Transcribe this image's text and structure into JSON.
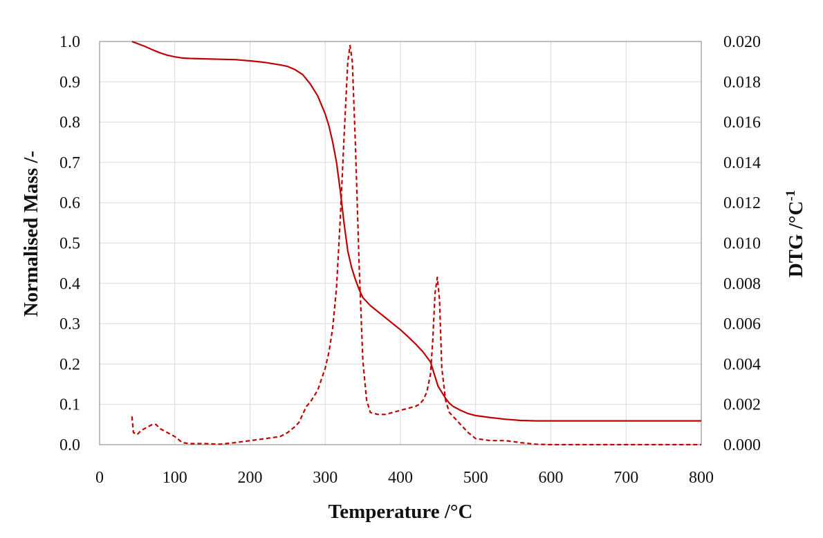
{
  "chart_data": {
    "type": "line",
    "title": "",
    "xlabel": "Temperature /°C",
    "ylabel": "Normalised Mass /-",
    "y2label": "DTG /°C",
    "y2label_superscript": "-1",
    "xlim": [
      0,
      800
    ],
    "ylim": [
      0,
      1.0
    ],
    "y2lim": [
      0,
      0.02
    ],
    "x_ticks": [
      "0",
      "100",
      "200",
      "300",
      "400",
      "500",
      "600",
      "700",
      "800"
    ],
    "y_ticks": [
      "0.0",
      "0.1",
      "0.2",
      "0.3",
      "0.4",
      "0.5",
      "0.6",
      "0.7",
      "0.8",
      "0.9",
      "1.0"
    ],
    "y2_ticks": [
      "0.000",
      "0.002",
      "0.004",
      "0.006",
      "0.008",
      "0.010",
      "0.012",
      "0.014",
      "0.016",
      "0.018",
      "0.020"
    ],
    "grid": true,
    "legend": "none",
    "color": "#c00000",
    "series": [
      {
        "axis": "left",
        "style": "solid",
        "x": [
          43,
          50,
          60,
          70,
          80,
          90,
          100,
          110,
          120,
          140,
          160,
          180,
          200,
          220,
          240,
          250,
          260,
          270,
          280,
          290,
          300,
          305,
          310,
          315,
          320,
          325,
          330,
          335,
          340,
          345,
          350,
          360,
          370,
          380,
          390,
          400,
          410,
          420,
          430,
          440,
          445,
          450,
          455,
          460,
          465,
          470,
          480,
          490,
          500,
          520,
          540,
          560,
          580,
          600,
          650,
          700,
          750,
          800
        ],
        "y": [
          1.0,
          0.995,
          0.988,
          0.98,
          0.972,
          0.966,
          0.962,
          0.959,
          0.958,
          0.957,
          0.956,
          0.955,
          0.952,
          0.948,
          0.942,
          0.938,
          0.93,
          0.918,
          0.895,
          0.865,
          0.82,
          0.79,
          0.75,
          0.7,
          0.63,
          0.55,
          0.48,
          0.44,
          0.41,
          0.385,
          0.365,
          0.345,
          0.33,
          0.315,
          0.3,
          0.285,
          0.268,
          0.25,
          0.23,
          0.205,
          0.175,
          0.145,
          0.13,
          0.115,
          0.103,
          0.095,
          0.085,
          0.077,
          0.072,
          0.067,
          0.063,
          0.06,
          0.059,
          0.059,
          0.059,
          0.059,
          0.059,
          0.059
        ]
      },
      {
        "axis": "right",
        "style": "dashed",
        "x": [
          43,
          45,
          50,
          55,
          60,
          65,
          70,
          75,
          80,
          90,
          100,
          110,
          120,
          140,
          160,
          180,
          200,
          220,
          240,
          250,
          260,
          265,
          270,
          275,
          280,
          290,
          300,
          305,
          310,
          315,
          320,
          325,
          330,
          333,
          336,
          340,
          345,
          350,
          355,
          360,
          370,
          380,
          390,
          400,
          410,
          420,
          425,
          430,
          435,
          440,
          443,
          446,
          449,
          452,
          455,
          460,
          465,
          470,
          480,
          490,
          500,
          520,
          540,
          560,
          580,
          600,
          650,
          700,
          750,
          800
        ],
        "y": [
          0.0014,
          0.0006,
          0.0005,
          0.0007,
          0.0008,
          0.0009,
          0.001,
          0.001,
          0.0008,
          0.0006,
          0.0004,
          0.0001,
          5e-05,
          5e-05,
          2e-05,
          0.0001,
          0.0002,
          0.0003,
          0.0004,
          0.0006,
          0.0009,
          0.0011,
          0.0015,
          0.0019,
          0.0021,
          0.0027,
          0.0038,
          0.0046,
          0.0058,
          0.0078,
          0.0112,
          0.0152,
          0.019,
          0.0198,
          0.019,
          0.015,
          0.009,
          0.0042,
          0.0022,
          0.0016,
          0.0015,
          0.0015,
          0.0016,
          0.0017,
          0.0018,
          0.0019,
          0.002,
          0.0022,
          0.0026,
          0.0035,
          0.0052,
          0.0075,
          0.0083,
          0.0072,
          0.0038,
          0.0022,
          0.0016,
          0.0014,
          0.001,
          0.0006,
          0.0003,
          0.0002,
          0.0002,
          0.0001,
          2e-05,
          0.0,
          0.0,
          0.0,
          0.0,
          0.0
        ]
      }
    ]
  }
}
